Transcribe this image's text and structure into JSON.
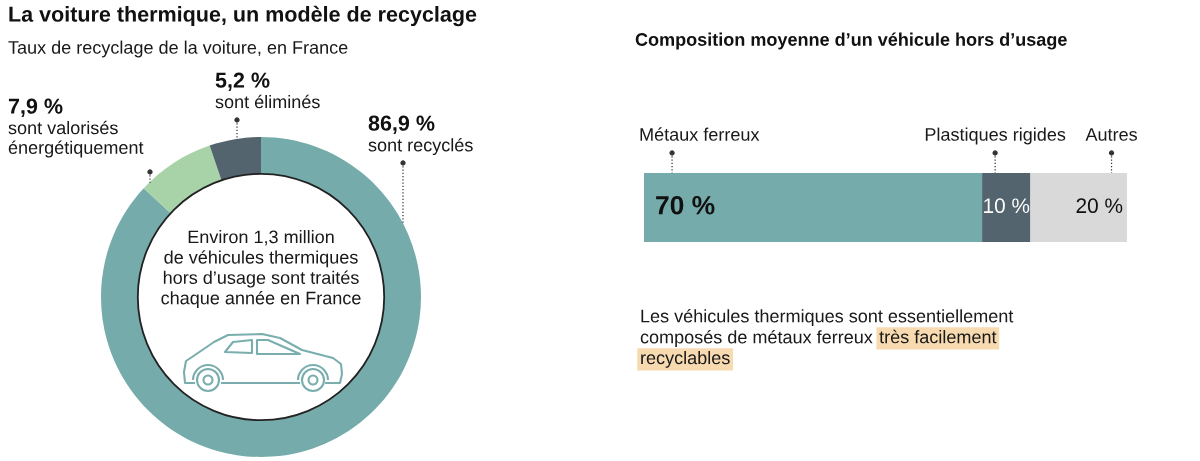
{
  "chart_data": [
    {
      "type": "donut",
      "title": "La voiture thermique, un modèle de recyclage",
      "subtitle": "Taux de recyclage de la voiture, en France",
      "categories": [
        "sont recyclés",
        "sont valorisés\nénergétiquement",
        "sont éliminés"
      ],
      "values": [
        86.9,
        7.9,
        5.2
      ],
      "value_labels": [
        "86,9 %",
        "7,9 %",
        "5,2 %"
      ],
      "colors": [
        "#76abab",
        "#a8d3a8",
        "#53646e"
      ],
      "annotations": [
        "Environ 1,3 million\nde véhicules thermiques\nhors d’usage sont traités\nchaque année en France"
      ]
    },
    {
      "type": "bar",
      "orientation": "horizontal",
      "stacked": true,
      "title": "Composition moyenne d’un véhicule hors d’usage",
      "categories": [
        null
      ],
      "series": [
        {
          "name": "Métaux ferreux",
          "color": "#76abab",
          "values": [
            70
          ],
          "value_labels": [
            "70 %"
          ]
        },
        {
          "name": "Plastiques rigides",
          "color": "#53646e",
          "values": [
            10
          ],
          "value_labels": [
            "10 %"
          ]
        },
        {
          "name": "Autres",
          "color": "#d9d9d9",
          "values": [
            20
          ],
          "value_labels": [
            "20 %"
          ]
        }
      ],
      "annotations": [
        "Les véhicules thermiques sont essentiellement\ncomposés de métaux ferreux",
        "très facilement\nrecyclables"
      ]
    }
  ]
}
